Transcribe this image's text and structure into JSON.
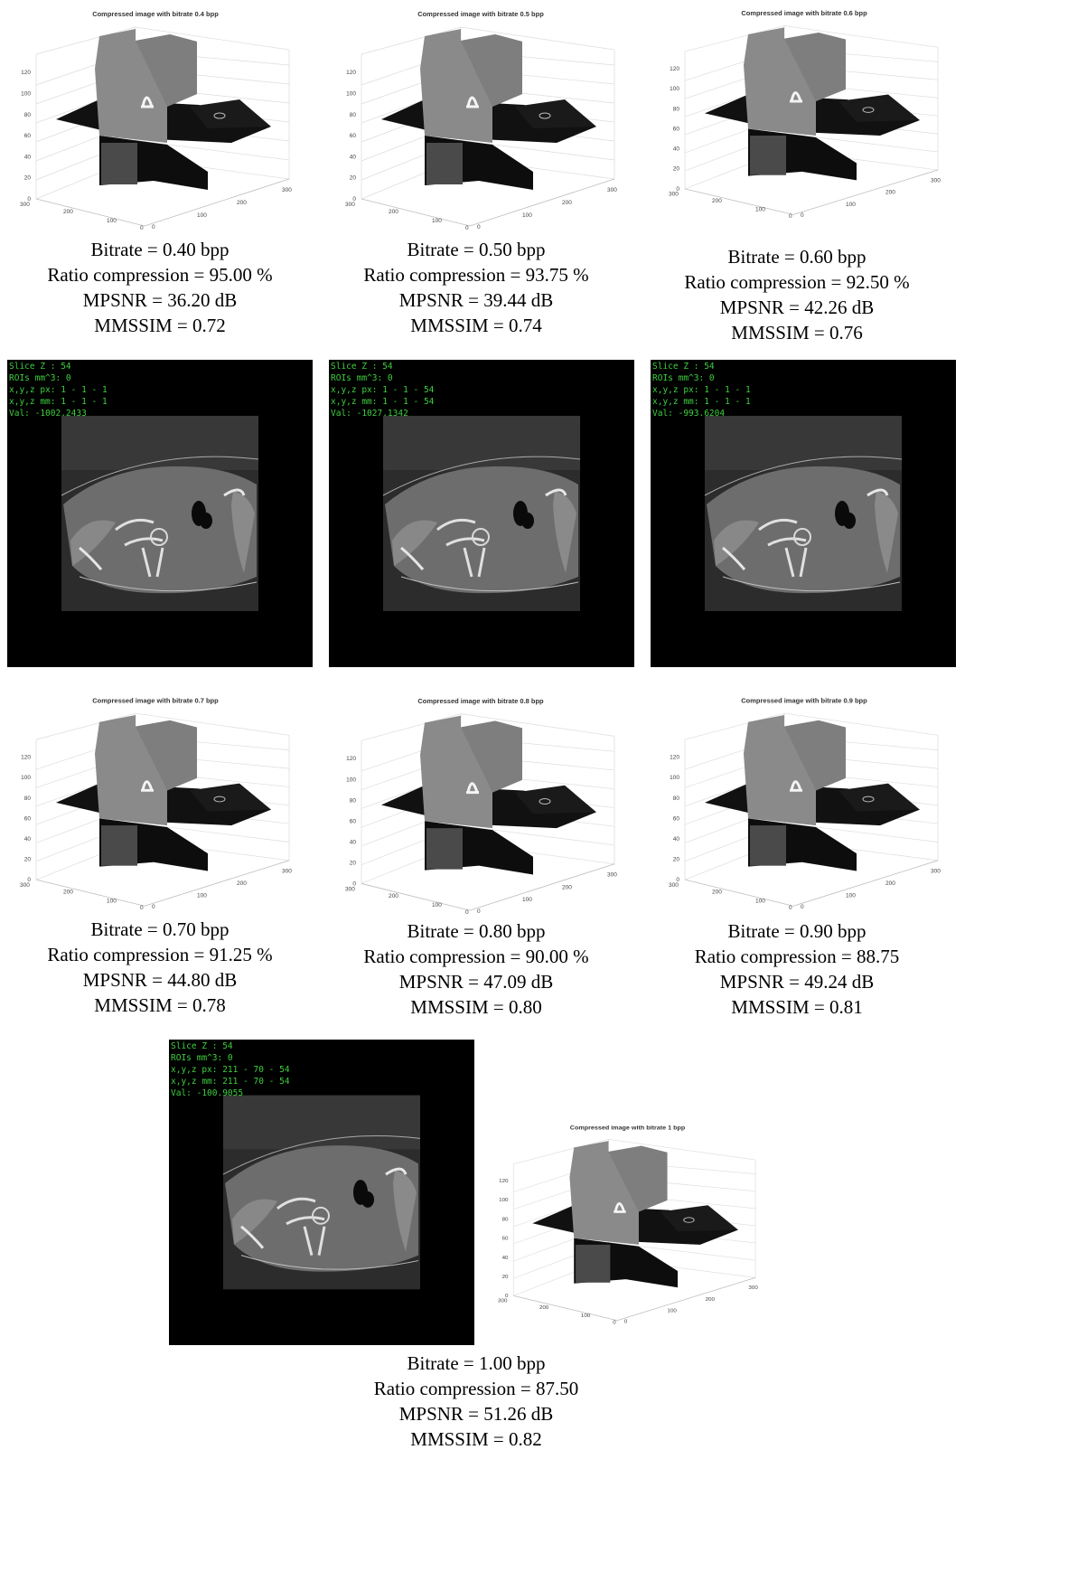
{
  "figures": [
    {
      "title": "Compressed image with bitrate 0.4 bpp",
      "bitrate": "Bitrate = 0.40 bpp",
      "ratio": "Ratio compression = 95.00 %",
      "mpsnr": "MPSNR = 36.20 dB",
      "mmssim": "MMSSIM = 0.72"
    },
    {
      "title": "Compressed image with bitrate 0.5 bpp",
      "bitrate": "Bitrate = 0.50 bpp",
      "ratio": "Ratio compression = 93.75 %",
      "mpsnr": "MPSNR = 39.44 dB",
      "mmssim": "MMSSIM = 0.74"
    },
    {
      "title": "Compressed image with bitrate 0.6 bpp",
      "bitrate": "Bitrate = 0.60 bpp",
      "ratio": "Ratio compression = 92.50 %",
      "mpsnr": "MPSNR = 42.26 dB",
      "mmssim": "MMSSIM = 0.76"
    },
    {
      "title": "Compressed image with bitrate 0.7 bpp",
      "bitrate": "Bitrate = 0.70 bpp",
      "ratio": "Ratio compression = 91.25 %",
      "mpsnr": "MPSNR = 44.80 dB",
      "mmssim": "MMSSIM = 0.78"
    },
    {
      "title": "Compressed image with bitrate 0.8 bpp",
      "bitrate": "Bitrate = 0.80 bpp",
      "ratio": "Ratio compression = 90.00 %",
      "mpsnr": "MPSNR = 47.09 dB",
      "mmssim": "MMSSIM = 0.80"
    },
    {
      "title": "Compressed image with bitrate 0.9 bpp",
      "bitrate": "Bitrate = 0.90 bpp",
      "ratio": "Ratio compression = 88.75",
      "mpsnr": "MPSNR = 49.24 dB",
      "mmssim": "MMSSIM = 0.81"
    },
    {
      "title": "Compressed image with bitrate 1 bpp",
      "bitrate": "Bitrate = 1.00 bpp",
      "ratio": "Ratio compression = 87.50",
      "mpsnr": "MPSNR = 51.26 dB",
      "mmssim": "MMSSIM = 0.82"
    }
  ],
  "axis_ticks": {
    "z": [
      "0",
      "20",
      "40",
      "60",
      "80",
      "100",
      "120"
    ],
    "y": [
      "300",
      "200",
      "100",
      "0"
    ],
    "x": [
      "0",
      "100",
      "200",
      "300"
    ]
  },
  "ct_views": [
    {
      "slice": "Slice Z : 54",
      "rois": "ROIs mm^3: 0",
      "px": "x,y,z px: 1 - 1 - 1",
      "mm": "x,y,z mm: 1 - 1 - 1",
      "val": "Val: -1002.2433"
    },
    {
      "slice": "Slice Z : 54",
      "rois": "ROIs mm^3: 0",
      "px": "x,y,z px: 1 - 1 - 54",
      "mm": "x,y,z mm: 1 - 1 - 54",
      "val": "Val: -1027.1342"
    },
    {
      "slice": "Slice Z : 54",
      "rois": "ROIs mm^3: 0",
      "px": "x,y,z px: 1 - 1 - 1",
      "mm": "x,y,z mm: 1 - 1 - 1",
      "val": "Val: -993.6204"
    },
    {
      "slice": "Slice Z : 54",
      "rois": "ROIs mm^3: 0",
      "px": "x,y,z px: 211 - 70 - 54",
      "mm": "x,y,z mm: 211 - 70 - 54",
      "val": "Val: -100.9055"
    }
  ]
}
